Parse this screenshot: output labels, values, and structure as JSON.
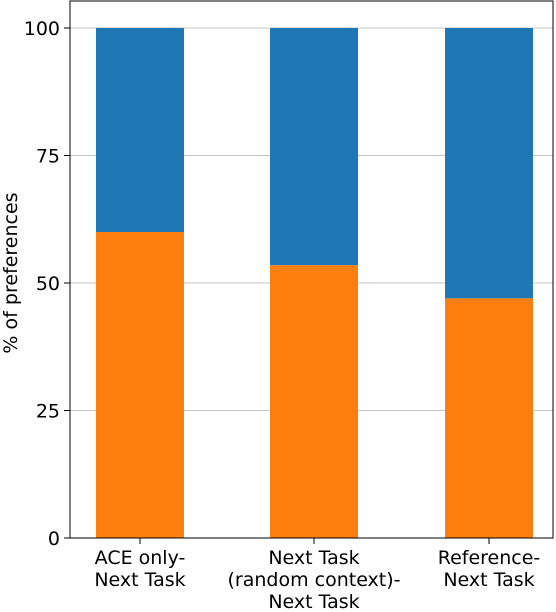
{
  "chart_data": {
    "type": "bar",
    "stacked": true,
    "categories": [
      "ACE only-\nNext Task",
      "Next Task\n(random context)-\nNext Task",
      "Reference-\nNext Task"
    ],
    "series": [
      {
        "values": [
          60,
          53.5,
          47
        ],
        "color": "#ff7f0e"
      },
      {
        "values": [
          40,
          46.5,
          53
        ],
        "color": "#1f77b4"
      }
    ],
    "ylabel": "% of preferences",
    "ylim": [
      0,
      100
    ],
    "yticks": [
      0,
      25,
      50,
      75,
      100
    ],
    "grid": "y"
  }
}
